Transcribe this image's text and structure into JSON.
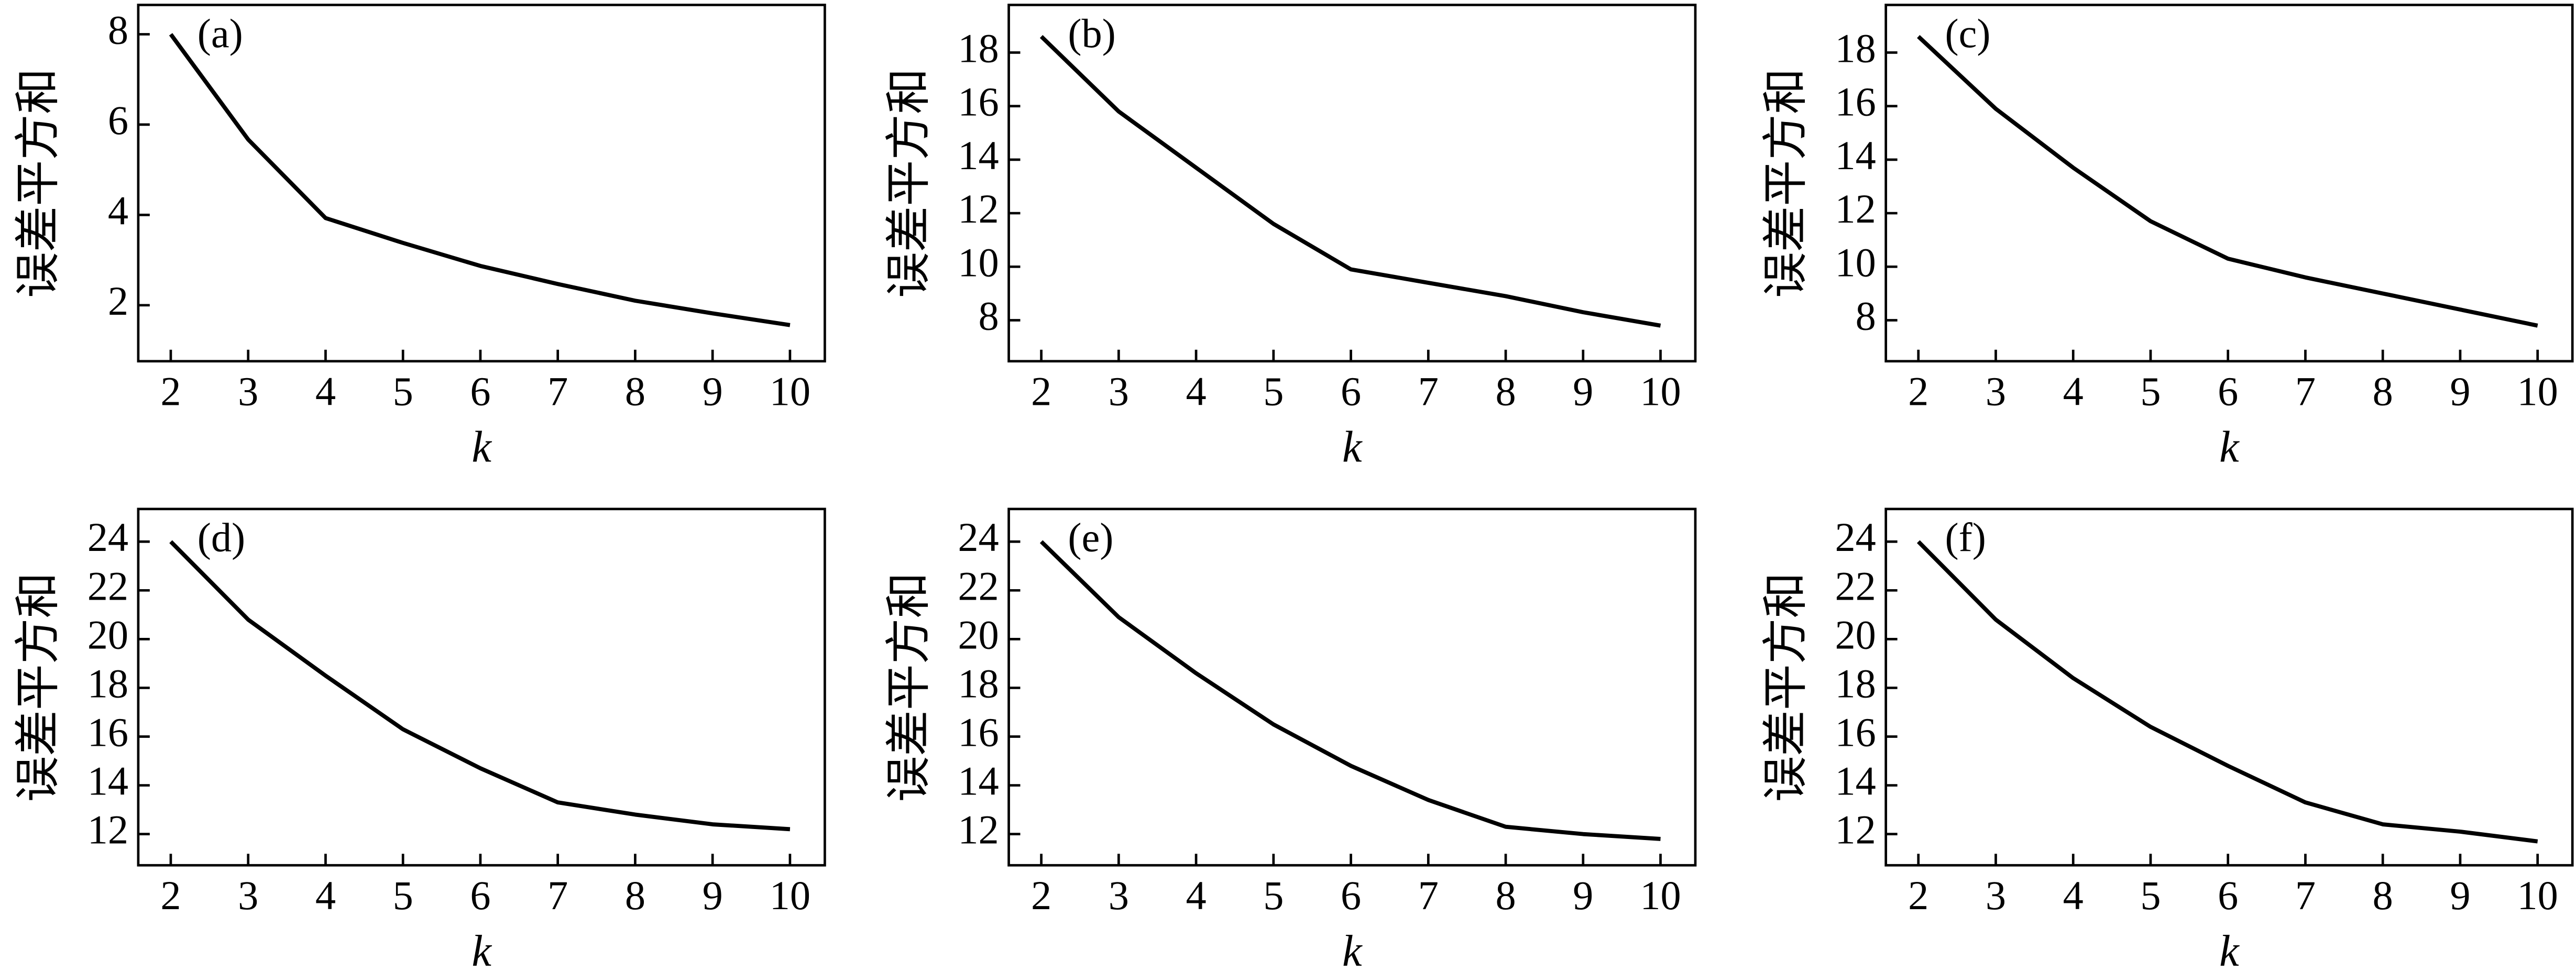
{
  "chart_data": [
    {
      "type": "line",
      "title": "(a)",
      "xlabel": "k",
      "ylabel": "误差平方和",
      "color": "#000000",
      "x": [
        2,
        3,
        4,
        5,
        6,
        7,
        8,
        9,
        10
      ],
      "values": [
        8.0,
        5.67,
        3.93,
        3.38,
        2.87,
        2.47,
        2.1,
        1.82,
        1.56
      ],
      "xlim": [
        1.58,
        10.45
      ],
      "ylim": [
        0.76,
        8.65
      ],
      "xticks": [
        2,
        3,
        4,
        5,
        6,
        7,
        8,
        9,
        10
      ],
      "yticks": [
        2,
        4,
        6,
        8
      ]
    },
    {
      "type": "line",
      "title": "(b)",
      "xlabel": "k",
      "ylabel": "误差平方和",
      "color": "#000000",
      "x": [
        2,
        3,
        4,
        5,
        6,
        7,
        8,
        9,
        10
      ],
      "values": [
        18.6,
        15.8,
        13.7,
        11.6,
        9.9,
        9.4,
        8.9,
        8.3,
        7.8
      ],
      "xlim": [
        1.58,
        10.45
      ],
      "ylim": [
        6.47,
        19.78
      ],
      "xticks": [
        2,
        3,
        4,
        5,
        6,
        7,
        8,
        9,
        10
      ],
      "yticks": [
        8,
        10,
        12,
        14,
        16,
        18
      ]
    },
    {
      "type": "line",
      "title": "(c)",
      "xlabel": "k",
      "ylabel": "误差平方和",
      "color": "#000000",
      "x": [
        2,
        3,
        4,
        5,
        6,
        7,
        8,
        9,
        10
      ],
      "values": [
        18.6,
        15.9,
        13.7,
        11.7,
        10.3,
        9.6,
        9.0,
        8.4,
        7.8
      ],
      "xlim": [
        1.58,
        10.45
      ],
      "ylim": [
        6.47,
        19.78
      ],
      "xticks": [
        2,
        3,
        4,
        5,
        6,
        7,
        8,
        9,
        10
      ],
      "yticks": [
        8,
        10,
        12,
        14,
        16,
        18
      ]
    },
    {
      "type": "line",
      "title": "(d)",
      "xlabel": "k",
      "ylabel": "误差平方和",
      "color": "#000000",
      "x": [
        2,
        3,
        4,
        5,
        6,
        7,
        8,
        9,
        10
      ],
      "values": [
        24.0,
        20.8,
        18.5,
        16.3,
        14.7,
        13.3,
        12.8,
        12.4,
        12.2
      ],
      "xlim": [
        1.58,
        10.45
      ],
      "ylim": [
        10.72,
        25.34
      ],
      "xticks": [
        2,
        3,
        4,
        5,
        6,
        7,
        8,
        9,
        10
      ],
      "yticks": [
        12,
        14,
        16,
        18,
        20,
        22,
        24
      ]
    },
    {
      "type": "line",
      "title": "(e)",
      "xlabel": "k",
      "ylabel": "误差平方和",
      "color": "#000000",
      "x": [
        2,
        3,
        4,
        5,
        6,
        7,
        8,
        9,
        10
      ],
      "values": [
        24.0,
        20.9,
        18.6,
        16.5,
        14.8,
        13.4,
        12.3,
        12.0,
        11.8
      ],
      "xlim": [
        1.58,
        10.45
      ],
      "ylim": [
        10.72,
        25.34
      ],
      "xticks": [
        2,
        3,
        4,
        5,
        6,
        7,
        8,
        9,
        10
      ],
      "yticks": [
        12,
        14,
        16,
        18,
        20,
        22,
        24
      ]
    },
    {
      "type": "line",
      "title": "(f)",
      "xlabel": "k",
      "ylabel": "误差平方和",
      "color": "#000000",
      "x": [
        2,
        3,
        4,
        5,
        6,
        7,
        8,
        9,
        10
      ],
      "values": [
        24.0,
        20.8,
        18.4,
        16.4,
        14.8,
        13.3,
        12.4,
        12.1,
        11.7
      ],
      "xlim": [
        1.58,
        10.45
      ],
      "ylim": [
        10.72,
        25.34
      ],
      "xticks": [
        2,
        3,
        4,
        5,
        6,
        7,
        8,
        9,
        10
      ],
      "yticks": [
        12,
        14,
        16,
        18,
        20,
        22,
        24
      ]
    }
  ]
}
